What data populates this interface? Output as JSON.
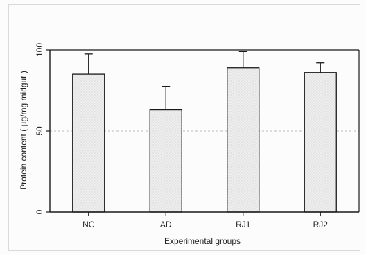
{
  "chart_data": {
    "type": "bar",
    "categories": [
      "NC",
      "AD",
      "RJ1",
      "RJ2"
    ],
    "values": [
      85,
      63,
      89,
      86
    ],
    "errors": [
      12.5,
      14.5,
      10,
      6
    ],
    "xlabel": "Experimental groups",
    "ylabel": "Protein content ( µg/mg midgut )",
    "ylim": [
      0,
      100
    ],
    "yticks": [
      0,
      50,
      100
    ],
    "grid": "dashed line at 50",
    "legend": "none",
    "colors": {
      "bar_fill": "#e6e6e6",
      "bar_stroke": "#1a1a1a",
      "axis": "#1a1a1a",
      "grid": "#bdbdbd"
    }
  }
}
